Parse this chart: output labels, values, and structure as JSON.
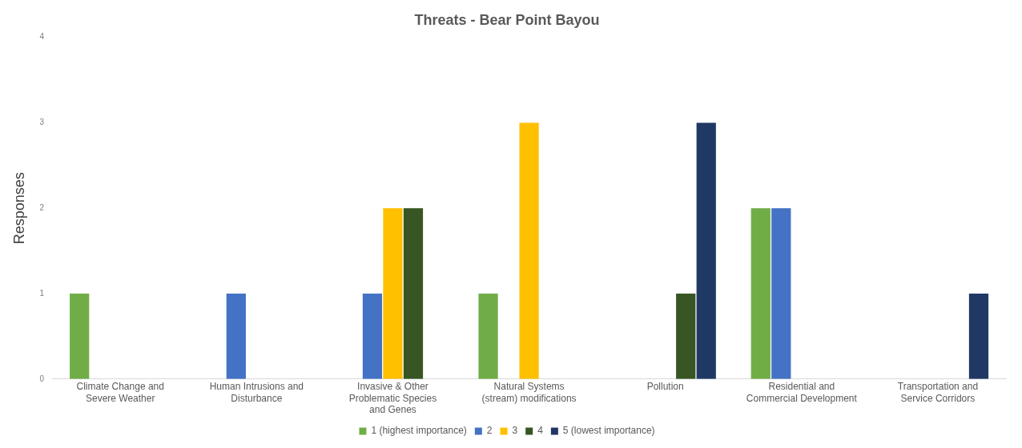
{
  "chart_data": {
    "type": "bar",
    "title": "Threats - Bear Point Bayou",
    "ylabel": "Responses",
    "categories": [
      "Climate Change and Severe Weather",
      "Human Intrusions and Disturbance",
      "Invasive & Other Problematic Species and Genes",
      "Natural Systems (stream) modifications",
      "Pollution",
      "Residential and Commercial Development",
      "Transportation and Service Corridors"
    ],
    "series": [
      {
        "name": "1 (highest importance)",
        "color": "#70ad47",
        "values": [
          1,
          0,
          0,
          1,
          0,
          2,
          0
        ]
      },
      {
        "name": "2",
        "color": "#4472c4",
        "values": [
          0,
          1,
          1,
          0,
          0,
          2,
          0
        ]
      },
      {
        "name": "3",
        "color": "#ffc000",
        "values": [
          0,
          0,
          2,
          3,
          0,
          0,
          0
        ]
      },
      {
        "name": "4",
        "color": "#375623",
        "values": [
          0,
          0,
          2,
          0,
          1,
          0,
          0
        ]
      },
      {
        "name": "5 (lowest importance)",
        "color": "#203864",
        "values": [
          0,
          0,
          0,
          0,
          3,
          0,
          1
        ]
      }
    ],
    "ylim": [
      0,
      4
    ],
    "yticks": [
      0,
      1,
      2,
      3,
      4
    ],
    "grid": false,
    "legend": "bottom"
  }
}
